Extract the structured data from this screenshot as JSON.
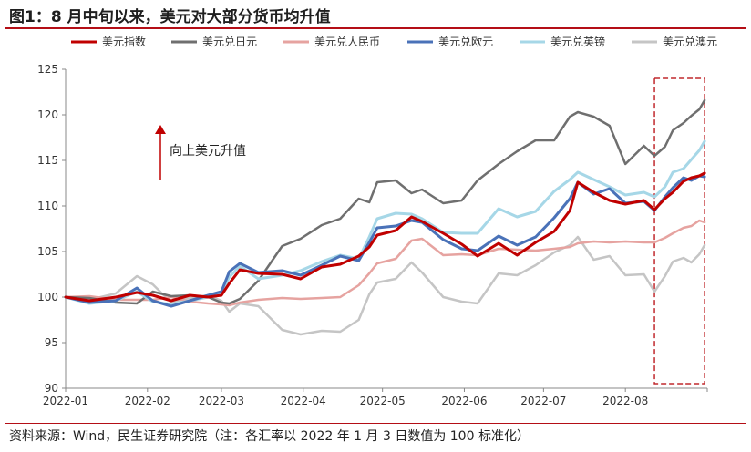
{
  "header": {
    "title": "图1：8 月中旬以来，美元对大部分货币均升值"
  },
  "footer": {
    "source": "资料来源：Wind，民生证券研究院（注：各汇率以 2022 年 1 月 3 日数值为 100 标准化）"
  },
  "chart_data": {
    "type": "line",
    "title": "",
    "xlabel": "",
    "ylabel": "",
    "ylim": [
      90,
      125
    ],
    "yticks": [
      90,
      95,
      100,
      105,
      110,
      115,
      120,
      125
    ],
    "xtick_labels": [
      "2022-01",
      "2022-02",
      "2022-03",
      "2022-04",
      "2022-05",
      "2022-06",
      "2022-07",
      "2022-08"
    ],
    "grid": false,
    "legend_position": "top",
    "annotation": {
      "text": "向上美元升值",
      "arrow": "up"
    },
    "highlight_box": {
      "x_start": "2022-08-12",
      "x_end": "2022-08-31",
      "y_range": [
        90.5,
        124
      ],
      "style": "red-dashed"
    },
    "series": [
      {
        "name": "美元指数",
        "color": "#c00000",
        "width": 3,
        "points": [
          [
            "2022-01-01",
            100
          ],
          [
            "2022-01-10",
            99.6
          ],
          [
            "2022-01-20",
            100
          ],
          [
            "2022-01-28",
            100.5
          ],
          [
            "2022-02-03",
            100.2
          ],
          [
            "2022-02-10",
            99.6
          ],
          [
            "2022-02-17",
            100.2
          ],
          [
            "2022-02-24",
            100
          ],
          [
            "2022-03-01",
            100.2
          ],
          [
            "2022-03-04",
            101.5
          ],
          [
            "2022-03-08",
            103
          ],
          [
            "2022-03-15",
            102.6
          ],
          [
            "2022-03-24",
            102.5
          ],
          [
            "2022-03-31",
            102
          ],
          [
            "2022-04-08",
            103.3
          ],
          [
            "2022-04-15",
            103.6
          ],
          [
            "2022-04-22",
            104.5
          ],
          [
            "2022-04-26",
            105.5
          ],
          [
            "2022-04-29",
            106.8
          ],
          [
            "2022-05-06",
            107.3
          ],
          [
            "2022-05-12",
            108.8
          ],
          [
            "2022-05-16",
            108.3
          ],
          [
            "2022-05-24",
            107
          ],
          [
            "2022-05-31",
            105.8
          ],
          [
            "2022-06-06",
            104.5
          ],
          [
            "2022-06-14",
            105.9
          ],
          [
            "2022-06-21",
            104.6
          ],
          [
            "2022-06-28",
            106
          ],
          [
            "2022-07-05",
            107.2
          ],
          [
            "2022-07-11",
            109.5
          ],
          [
            "2022-07-14",
            112.6
          ],
          [
            "2022-07-20",
            111.5
          ],
          [
            "2022-07-26",
            110.6
          ],
          [
            "2022-08-01",
            110.2
          ],
          [
            "2022-08-08",
            110.6
          ],
          [
            "2022-08-12",
            109.6
          ],
          [
            "2022-08-16",
            110.8
          ],
          [
            "2022-08-19",
            111.5
          ],
          [
            "2022-08-23",
            112.7
          ],
          [
            "2022-08-26",
            113.1
          ],
          [
            "2022-08-29",
            113.3
          ],
          [
            "2022-08-31",
            113.6
          ]
        ]
      },
      {
        "name": "美元兑日元",
        "color": "#6f6f6f",
        "width": 2.5,
        "points": [
          [
            "2022-01-01",
            100
          ],
          [
            "2022-01-10",
            99.9
          ],
          [
            "2022-01-20",
            99.4
          ],
          [
            "2022-01-28",
            99.3
          ],
          [
            "2022-02-03",
            100.6
          ],
          [
            "2022-02-10",
            100.1
          ],
          [
            "2022-02-17",
            100.2
          ],
          [
            "2022-02-24",
            100
          ],
          [
            "2022-03-01",
            99.4
          ],
          [
            "2022-03-04",
            99.3
          ],
          [
            "2022-03-08",
            99.8
          ],
          [
            "2022-03-15",
            101.8
          ],
          [
            "2022-03-24",
            105.6
          ],
          [
            "2022-03-31",
            106.4
          ],
          [
            "2022-04-08",
            107.9
          ],
          [
            "2022-04-15",
            108.6
          ],
          [
            "2022-04-22",
            110.8
          ],
          [
            "2022-04-26",
            110.4
          ],
          [
            "2022-04-29",
            112.6
          ],
          [
            "2022-05-06",
            112.8
          ],
          [
            "2022-05-12",
            111.4
          ],
          [
            "2022-05-16",
            111.8
          ],
          [
            "2022-05-24",
            110.3
          ],
          [
            "2022-05-31",
            110.6
          ],
          [
            "2022-06-06",
            112.8
          ],
          [
            "2022-06-14",
            114.6
          ],
          [
            "2022-06-21",
            116
          ],
          [
            "2022-06-28",
            117.2
          ],
          [
            "2022-07-05",
            117.2
          ],
          [
            "2022-07-11",
            119.8
          ],
          [
            "2022-07-14",
            120.3
          ],
          [
            "2022-07-20",
            119.8
          ],
          [
            "2022-07-26",
            118.8
          ],
          [
            "2022-08-01",
            114.6
          ],
          [
            "2022-08-08",
            116.6
          ],
          [
            "2022-08-12",
            115.5
          ],
          [
            "2022-08-16",
            116.5
          ],
          [
            "2022-08-19",
            118.3
          ],
          [
            "2022-08-23",
            119.1
          ],
          [
            "2022-08-26",
            119.9
          ],
          [
            "2022-08-29",
            120.6
          ],
          [
            "2022-08-31",
            121.6
          ]
        ]
      },
      {
        "name": "美元兑人民币",
        "color": "#e6a3a0",
        "width": 2.5,
        "points": [
          [
            "2022-01-01",
            100
          ],
          [
            "2022-01-10",
            100.1
          ],
          [
            "2022-01-20",
            99.7
          ],
          [
            "2022-01-28",
            99.7
          ],
          [
            "2022-02-03",
            99.7
          ],
          [
            "2022-02-10",
            100
          ],
          [
            "2022-02-17",
            99.5
          ],
          [
            "2022-02-24",
            99.3
          ],
          [
            "2022-03-01",
            99.2
          ],
          [
            "2022-03-04",
            99.1
          ],
          [
            "2022-03-08",
            99.4
          ],
          [
            "2022-03-15",
            99.7
          ],
          [
            "2022-03-24",
            99.9
          ],
          [
            "2022-03-31",
            99.8
          ],
          [
            "2022-04-08",
            99.9
          ],
          [
            "2022-04-15",
            100
          ],
          [
            "2022-04-22",
            101.3
          ],
          [
            "2022-04-26",
            102.6
          ],
          [
            "2022-04-29",
            103.7
          ],
          [
            "2022-05-06",
            104.2
          ],
          [
            "2022-05-12",
            106.2
          ],
          [
            "2022-05-16",
            106.4
          ],
          [
            "2022-05-24",
            104.6
          ],
          [
            "2022-05-31",
            104.7
          ],
          [
            "2022-06-06",
            104.6
          ],
          [
            "2022-06-14",
            105.3
          ],
          [
            "2022-06-21",
            105.2
          ],
          [
            "2022-06-28",
            105.1
          ],
          [
            "2022-07-05",
            105.3
          ],
          [
            "2022-07-11",
            105.5
          ],
          [
            "2022-07-14",
            105.9
          ],
          [
            "2022-07-20",
            106.1
          ],
          [
            "2022-07-26",
            106
          ],
          [
            "2022-08-01",
            106.1
          ],
          [
            "2022-08-08",
            106
          ],
          [
            "2022-08-12",
            106
          ],
          [
            "2022-08-16",
            106.5
          ],
          [
            "2022-08-19",
            107
          ],
          [
            "2022-08-23",
            107.6
          ],
          [
            "2022-08-26",
            107.8
          ],
          [
            "2022-08-29",
            108.4
          ],
          [
            "2022-08-31",
            108.2
          ]
        ]
      },
      {
        "name": "美元兑欧元",
        "color": "#4a72b8",
        "width": 3,
        "points": [
          [
            "2022-01-01",
            100
          ],
          [
            "2022-01-10",
            99.4
          ],
          [
            "2022-01-20",
            99.6
          ],
          [
            "2022-01-28",
            101
          ],
          [
            "2022-02-03",
            99.6
          ],
          [
            "2022-02-10",
            99
          ],
          [
            "2022-02-17",
            99.6
          ],
          [
            "2022-02-24",
            100.2
          ],
          [
            "2022-03-01",
            100.6
          ],
          [
            "2022-03-04",
            102.8
          ],
          [
            "2022-03-08",
            103.7
          ],
          [
            "2022-03-15",
            102.7
          ],
          [
            "2022-03-24",
            102.9
          ],
          [
            "2022-03-31",
            102.4
          ],
          [
            "2022-04-08",
            103.5
          ],
          [
            "2022-04-15",
            104.5
          ],
          [
            "2022-04-22",
            104
          ],
          [
            "2022-04-26",
            106
          ],
          [
            "2022-04-29",
            107.6
          ],
          [
            "2022-05-06",
            107.8
          ],
          [
            "2022-05-12",
            108.4
          ],
          [
            "2022-05-16",
            108.2
          ],
          [
            "2022-05-24",
            106.3
          ],
          [
            "2022-05-31",
            105.3
          ],
          [
            "2022-06-06",
            105.1
          ],
          [
            "2022-06-14",
            106.7
          ],
          [
            "2022-06-21",
            105.7
          ],
          [
            "2022-06-28",
            106.6
          ],
          [
            "2022-07-05",
            108.7
          ],
          [
            "2022-07-11",
            110.8
          ],
          [
            "2022-07-14",
            112.6
          ],
          [
            "2022-07-20",
            111.3
          ],
          [
            "2022-07-26",
            111.9
          ],
          [
            "2022-08-01",
            110.3
          ],
          [
            "2022-08-08",
            110.5
          ],
          [
            "2022-08-12",
            109.5
          ],
          [
            "2022-08-16",
            111
          ],
          [
            "2022-08-19",
            112
          ],
          [
            "2022-08-23",
            113.1
          ],
          [
            "2022-08-26",
            112.8
          ],
          [
            "2022-08-29",
            113.3
          ],
          [
            "2022-08-31",
            113.2
          ]
        ]
      },
      {
        "name": "美元兑英镑",
        "color": "#a6d7e7",
        "width": 3,
        "points": [
          [
            "2022-01-01",
            100
          ],
          [
            "2022-01-10",
            99.3
          ],
          [
            "2022-01-20",
            99.6
          ],
          [
            "2022-01-28",
            100.6
          ],
          [
            "2022-02-03",
            99.5
          ],
          [
            "2022-02-10",
            99.2
          ],
          [
            "2022-02-17",
            99.6
          ],
          [
            "2022-02-24",
            100
          ],
          [
            "2022-03-01",
            100.4
          ],
          [
            "2022-03-04",
            102.2
          ],
          [
            "2022-03-08",
            103.4
          ],
          [
            "2022-03-15",
            102
          ],
          [
            "2022-03-24",
            102.4
          ],
          [
            "2022-03-31",
            102.9
          ],
          [
            "2022-04-08",
            103.9
          ],
          [
            "2022-04-15",
            104.6
          ],
          [
            "2022-04-22",
            104.2
          ],
          [
            "2022-04-26",
            106.6
          ],
          [
            "2022-04-29",
            108.6
          ],
          [
            "2022-05-06",
            109.2
          ],
          [
            "2022-05-12",
            109.1
          ],
          [
            "2022-05-16",
            108.6
          ],
          [
            "2022-05-24",
            107.1
          ],
          [
            "2022-05-31",
            107
          ],
          [
            "2022-06-06",
            107
          ],
          [
            "2022-06-14",
            109.7
          ],
          [
            "2022-06-21",
            108.8
          ],
          [
            "2022-06-28",
            109.4
          ],
          [
            "2022-07-05",
            111.6
          ],
          [
            "2022-07-11",
            112.9
          ],
          [
            "2022-07-14",
            113.7
          ],
          [
            "2022-07-20",
            112.9
          ],
          [
            "2022-07-26",
            112.1
          ],
          [
            "2022-08-01",
            111.2
          ],
          [
            "2022-08-08",
            111.5
          ],
          [
            "2022-08-12",
            111
          ],
          [
            "2022-08-16",
            112.1
          ],
          [
            "2022-08-19",
            113.7
          ],
          [
            "2022-08-23",
            114.1
          ],
          [
            "2022-08-26",
            115.1
          ],
          [
            "2022-08-29",
            116.1
          ],
          [
            "2022-08-31",
            117.1
          ]
        ]
      },
      {
        "name": "美元兑澳元",
        "color": "#c5c5c5",
        "width": 2.5,
        "points": [
          [
            "2022-01-01",
            100
          ],
          [
            "2022-01-10",
            99.7
          ],
          [
            "2022-01-20",
            100.4
          ],
          [
            "2022-01-28",
            102.3
          ],
          [
            "2022-02-03",
            101.4
          ],
          [
            "2022-02-10",
            99.4
          ],
          [
            "2022-02-17",
            99.9
          ],
          [
            "2022-02-24",
            100.2
          ],
          [
            "2022-03-01",
            99.6
          ],
          [
            "2022-03-04",
            98.4
          ],
          [
            "2022-03-08",
            99.3
          ],
          [
            "2022-03-15",
            99
          ],
          [
            "2022-03-24",
            96.4
          ],
          [
            "2022-03-31",
            95.9
          ],
          [
            "2022-04-08",
            96.3
          ],
          [
            "2022-04-15",
            96.2
          ],
          [
            "2022-04-22",
            97.5
          ],
          [
            "2022-04-26",
            100.3
          ],
          [
            "2022-04-29",
            101.6
          ],
          [
            "2022-05-06",
            102
          ],
          [
            "2022-05-12",
            103.8
          ],
          [
            "2022-05-16",
            102.7
          ],
          [
            "2022-05-24",
            100
          ],
          [
            "2022-05-31",
            99.5
          ],
          [
            "2022-06-06",
            99.3
          ],
          [
            "2022-06-14",
            102.6
          ],
          [
            "2022-06-21",
            102.4
          ],
          [
            "2022-06-28",
            103.5
          ],
          [
            "2022-07-05",
            104.9
          ],
          [
            "2022-07-11",
            105.7
          ],
          [
            "2022-07-14",
            106.6
          ],
          [
            "2022-07-20",
            104.1
          ],
          [
            "2022-07-26",
            104.5
          ],
          [
            "2022-08-01",
            102.4
          ],
          [
            "2022-08-08",
            102.5
          ],
          [
            "2022-08-12",
            100.6
          ],
          [
            "2022-08-16",
            102.3
          ],
          [
            "2022-08-19",
            103.9
          ],
          [
            "2022-08-23",
            104.3
          ],
          [
            "2022-08-26",
            103.8
          ],
          [
            "2022-08-29",
            104.7
          ],
          [
            "2022-08-31",
            105.7
          ]
        ]
      }
    ]
  }
}
